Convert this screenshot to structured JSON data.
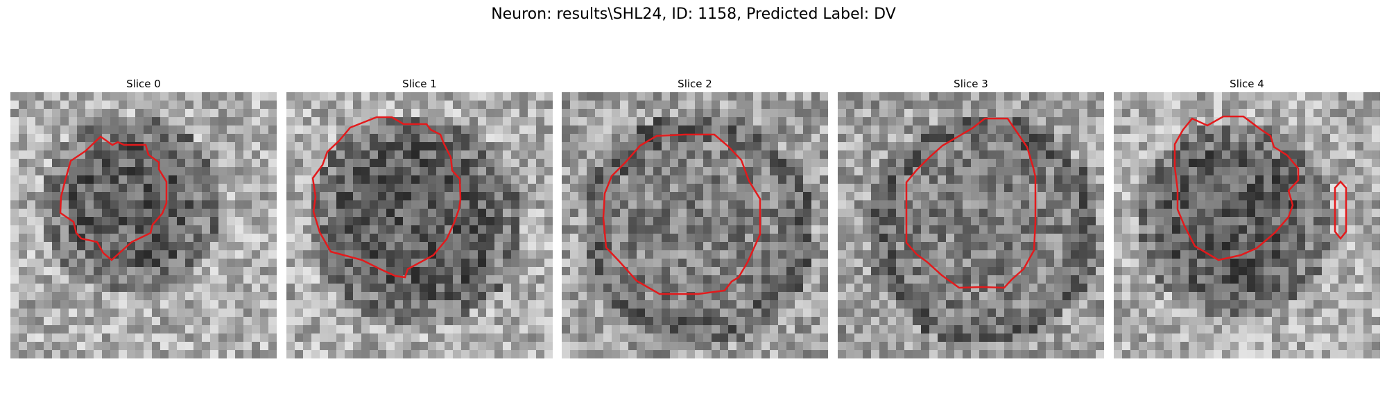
{
  "figure": {
    "title": "Neuron: results\\SHL24, ID: 1158, Predicted Label: DV",
    "contour_color": "#e31a1c"
  },
  "panels": [
    {
      "label": "Slice 0",
      "icon": "grayscale-slice-with-contour"
    },
    {
      "label": "Slice 1",
      "icon": "grayscale-slice-with-contour"
    },
    {
      "label": "Slice 2",
      "icon": "grayscale-slice-with-contour"
    },
    {
      "label": "Slice 3",
      "icon": "grayscale-slice-with-contour"
    },
    {
      "label": "Slice 4",
      "icon": "grayscale-slice-with-contour"
    }
  ]
}
